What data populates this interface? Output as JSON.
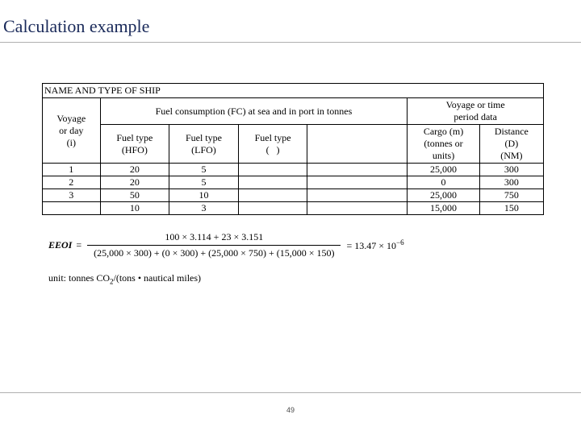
{
  "title": "Calculation example",
  "table": {
    "ship_header": "NAME AND TYPE OF SHIP",
    "voyage_hdr_l1": "Voyage",
    "voyage_hdr_l2": "or day",
    "voyage_hdr_l3": "(i)",
    "fc_hdr": "Fuel consumption (FC) at sea and in port in tonnes",
    "vt_hdr_l1": "Voyage or time",
    "vt_hdr_l2": "period data",
    "ft1_l1": "Fuel type",
    "ft1_l2": "(HFO)",
    "ft2_l1": "Fuel type",
    "ft2_l2": "(LFO)",
    "ft3_l1": "Fuel type",
    "ft3_l2": "(   )",
    "cargo_l1": "Cargo (m)",
    "cargo_l2": "(tonnes or",
    "cargo_l3": "units)",
    "dist_l1": "Distance",
    "dist_l2": "(D)",
    "dist_l3": "(NM)",
    "rows": [
      {
        "i": "1",
        "hfo": "20",
        "lfo": "5",
        "ft3": "",
        "blank": "",
        "cargo": "25,000",
        "dist": "300"
      },
      {
        "i": "2",
        "hfo": "20",
        "lfo": "5",
        "ft3": "",
        "blank": "",
        "cargo": "0",
        "dist": "300"
      },
      {
        "i": "3",
        "hfo": "50",
        "lfo": "10",
        "ft3": "",
        "blank": "",
        "cargo": "25,000",
        "dist": "750"
      },
      {
        "i": "",
        "hfo": "10",
        "lfo": "3",
        "ft3": "",
        "blank": "",
        "cargo": "15,000",
        "dist": "150"
      }
    ]
  },
  "formula": {
    "label": "EEOI",
    "numerator": "100 × 3.114 + 23 × 3.151",
    "denominator": "(25,000 × 300) + (0 × 300) + (25,000 × 750) + (15,000 × 150)",
    "result_base": "= 13.47 × 10",
    "result_exp": "−6"
  },
  "unit_prefix": "unit: tonnes CO",
  "unit_sub": "2",
  "unit_suffix": "/(tons • nautical miles)",
  "pagenum": "49"
}
